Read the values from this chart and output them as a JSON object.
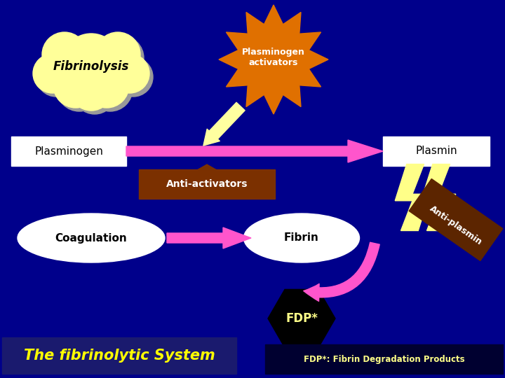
{
  "bg_color": "#00008B",
  "fibrinolysis_text": "Fibrinolysis",
  "plasminogen_act_text": "Plasminogen\nactivators",
  "plasminogen_text": "Plasminogen",
  "plasmin_text": "Plasmin",
  "anti_activators_text": "Anti-activators",
  "coagulation_text": "Coagulation",
  "fibrin_text": "Fibrin",
  "anti_plasmin_text": "Anti-plasmin",
  "fdp_text": "FDP*",
  "title_text": "The fibrinolytic System",
  "fdp_note": "FDP*: Fibrin Degradation Products",
  "cloud_color": "#FFFF99",
  "cloud_shadow": "#999999",
  "starburst_color": "#E07000",
  "arrow_yellow": "#FFFFA0",
  "arrow_magenta": "#FF55CC",
  "box_white": "#FFFFFF",
  "anti_act_color": "#7B3000",
  "anti_plasm_color": "#5C2500",
  "lightning_color": "#FFFF88",
  "hexagon_color": "#000000",
  "fdp_text_color": "#FFFF88",
  "title_bg": "#1A1A6E",
  "title_color": "#FFFF00",
  "fdp_note_bg": "#000030",
  "fdp_note_color": "#FFFF88"
}
